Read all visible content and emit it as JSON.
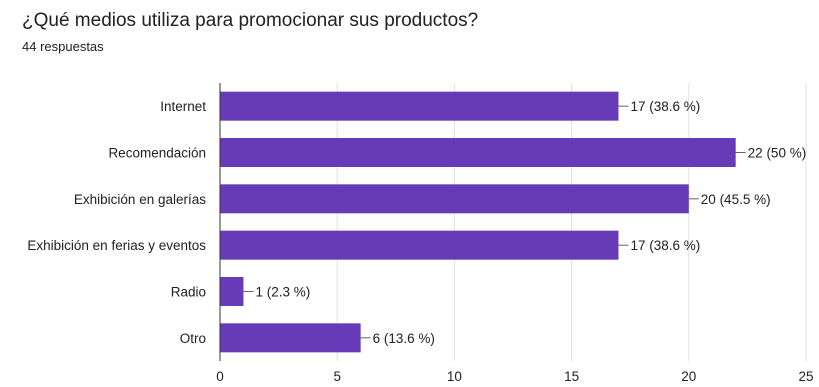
{
  "header": {
    "title": "¿Qué medios utiliza para promocionar sus productos?",
    "subtitle": "44 respuestas"
  },
  "chart_data": {
    "type": "bar",
    "orientation": "horizontal",
    "title": "¿Qué medios utiliza para promocionar sus productos?",
    "subtitle": "44 respuestas",
    "categories": [
      "Internet",
      "Recomendación",
      "Exhibición en galerías",
      "Exhibición en ferias y eventos",
      "Radio",
      "Otro"
    ],
    "values": [
      17,
      22,
      20,
      17,
      1,
      6
    ],
    "data_labels": [
      "17 (38.6 %)",
      "22 (50 %)",
      "20 (45.5 %)",
      "17 (38.6 %)",
      "1 (2.3 %)",
      "6 (13.6 %)"
    ],
    "xlim": [
      0,
      25
    ],
    "xticks": [
      0,
      5,
      10,
      15,
      20,
      25
    ],
    "grid": true,
    "bar_color": "#673ab7",
    "grid_color": "#e0e0e0"
  }
}
